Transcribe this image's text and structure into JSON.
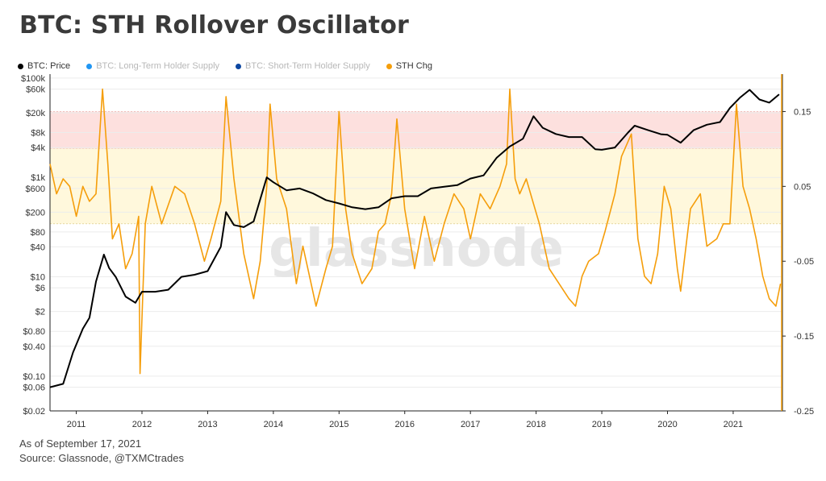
{
  "header": {
    "title": "BTC: STH Rollover Oscillator"
  },
  "legend": [
    {
      "label": "BTC: Price",
      "color": "#000000",
      "faded": false
    },
    {
      "label": "BTC: Long-Term Holder Supply",
      "color": "#2196f3",
      "faded": true
    },
    {
      "label": "BTC: Short-Term Holder Supply",
      "color": "#0d47a1",
      "faded": true
    },
    {
      "label": "STH Chg",
      "color": "#f59e0b",
      "faded": false
    }
  ],
  "footer": {
    "date_line": "As of September 17, 2021",
    "source_line": "Source: Glassnode, @TXMCtrades"
  },
  "watermark": "glassnode",
  "chart_data": {
    "type": "line",
    "x_axis": {
      "ticks": [
        "2011",
        "2012",
        "2013",
        "2014",
        "2015",
        "2016",
        "2017",
        "2018",
        "2019",
        "2020",
        "2021"
      ],
      "range": [
        2010.6,
        2021.75
      ]
    },
    "y_left": {
      "scale": "log",
      "range": [
        0.02,
        120000
      ],
      "ticks": [
        {
          "label": "$100k",
          "value": 100000
        },
        {
          "label": "$60k",
          "value": 60000
        },
        {
          "label": "$20k",
          "value": 20000
        },
        {
          "label": "$8k",
          "value": 8000
        },
        {
          "label": "$4k",
          "value": 4000
        },
        {
          "label": "$1k",
          "value": 1000
        },
        {
          "label": "$600",
          "value": 600
        },
        {
          "label": "$200",
          "value": 200
        },
        {
          "label": "$80",
          "value": 80
        },
        {
          "label": "$40",
          "value": 40
        },
        {
          "label": "$10",
          "value": 10
        },
        {
          "label": "$6",
          "value": 6
        },
        {
          "label": "$2",
          "value": 2
        },
        {
          "label": "$0.80",
          "value": 0.8
        },
        {
          "label": "$0.40",
          "value": 0.4
        },
        {
          "label": "$0.10",
          "value": 0.1
        },
        {
          "label": "$0.06",
          "value": 0.06
        },
        {
          "label": "$0.02",
          "value": 0.02
        }
      ]
    },
    "y_right": {
      "scale": "linear",
      "range": [
        -0.25,
        0.2
      ],
      "ticks": [
        {
          "label": "0.15",
          "value": 0.15
        },
        {
          "label": "0.05",
          "value": 0.05
        },
        {
          "label": "-0.05",
          "value": -0.05
        },
        {
          "label": "-0.15",
          "value": -0.15
        },
        {
          "label": "-0.25",
          "value": -0.25
        }
      ]
    },
    "bands": [
      {
        "from": 0.1,
        "to": 0.15,
        "color": "#fde0de"
      },
      {
        "from": 0.0,
        "to": 0.1,
        "color": "#fff8dc"
      }
    ],
    "series": [
      {
        "name": "BTC: Price",
        "axis": "left",
        "color": "#000000",
        "x": [
          2010.6,
          2010.8,
          2010.95,
          2011.1,
          2011.2,
          2011.3,
          2011.42,
          2011.5,
          2011.6,
          2011.75,
          2011.9,
          2012.0,
          2012.2,
          2012.4,
          2012.6,
          2012.8,
          2013.0,
          2013.2,
          2013.28,
          2013.4,
          2013.55,
          2013.7,
          2013.9,
          2014.0,
          2014.2,
          2014.4,
          2014.6,
          2014.8,
          2015.0,
          2015.2,
          2015.4,
          2015.6,
          2015.8,
          2016.0,
          2016.2,
          2016.4,
          2016.6,
          2016.8,
          2017.0,
          2017.2,
          2017.4,
          2017.6,
          2017.8,
          2017.96,
          2018.1,
          2018.3,
          2018.5,
          2018.7,
          2018.9,
          2019.0,
          2019.2,
          2019.4,
          2019.5,
          2019.7,
          2019.9,
          2020.0,
          2020.2,
          2020.4,
          2020.6,
          2020.8,
          2020.95,
          2021.1,
          2021.25,
          2021.4,
          2021.55,
          2021.7
        ],
        "y": [
          0.06,
          0.07,
          0.3,
          0.9,
          1.5,
          8,
          28,
          15,
          10,
          4,
          3,
          5,
          5,
          5.5,
          10,
          11,
          13,
          40,
          200,
          110,
          100,
          130,
          1000,
          800,
          550,
          600,
          480,
          350,
          300,
          250,
          230,
          250,
          380,
          420,
          420,
          600,
          650,
          700,
          950,
          1100,
          2500,
          4200,
          6000,
          17000,
          10000,
          7500,
          6500,
          6500,
          3700,
          3600,
          4000,
          8000,
          11000,
          9000,
          7400,
          7200,
          5000,
          9000,
          11500,
          13000,
          25000,
          40000,
          58000,
          37000,
          32000,
          47000
        ]
      },
      {
        "name": "STH Chg",
        "axis": "right",
        "color": "#f59e0b",
        "x": [
          2010.6,
          2010.7,
          2010.8,
          2010.9,
          2011.0,
          2011.1,
          2011.2,
          2011.3,
          2011.4,
          2011.48,
          2011.55,
          2011.65,
          2011.75,
          2011.85,
          2011.95,
          2011.97,
          2012.05,
          2012.15,
          2012.3,
          2012.5,
          2012.65,
          2012.8,
          2012.95,
          2013.05,
          2013.2,
          2013.28,
          2013.4,
          2013.55,
          2013.7,
          2013.8,
          2013.9,
          2013.95,
          2014.05,
          2014.2,
          2014.35,
          2014.45,
          2014.55,
          2014.65,
          2014.8,
          2014.9,
          2015.0,
          2015.1,
          2015.2,
          2015.35,
          2015.5,
          2015.6,
          2015.7,
          2015.8,
          2015.88,
          2016.0,
          2016.15,
          2016.3,
          2016.45,
          2016.6,
          2016.75,
          2016.9,
          2017.0,
          2017.15,
          2017.3,
          2017.45,
          2017.55,
          2017.6,
          2017.68,
          2017.75,
          2017.85,
          2017.95,
          2018.05,
          2018.2,
          2018.35,
          2018.5,
          2018.6,
          2018.7,
          2018.8,
          2018.95,
          2019.05,
          2019.2,
          2019.3,
          2019.45,
          2019.55,
          2019.65,
          2019.75,
          2019.85,
          2019.95,
          2020.05,
          2020.15,
          2020.2,
          2020.35,
          2020.5,
          2020.6,
          2020.75,
          2020.85,
          2020.95,
          2021.05,
          2021.15,
          2021.25,
          2021.35,
          2021.45,
          2021.55,
          2021.65,
          2021.72
        ],
        "y": [
          0.08,
          0.04,
          0.06,
          0.05,
          0.01,
          0.05,
          0.03,
          0.04,
          0.18,
          0.08,
          -0.02,
          0.0,
          -0.06,
          -0.04,
          0.01,
          -0.2,
          0.0,
          0.05,
          0.0,
          0.05,
          0.04,
          0.0,
          -0.05,
          -0.02,
          0.03,
          0.17,
          0.06,
          -0.04,
          -0.1,
          -0.05,
          0.05,
          0.16,
          0.06,
          0.02,
          -0.08,
          -0.03,
          -0.07,
          -0.11,
          -0.06,
          -0.03,
          0.15,
          0.02,
          -0.04,
          -0.08,
          -0.06,
          -0.01,
          0.0,
          0.04,
          0.14,
          0.02,
          -0.06,
          0.01,
          -0.05,
          0.0,
          0.04,
          0.02,
          -0.02,
          0.04,
          0.02,
          0.05,
          0.08,
          0.18,
          0.06,
          0.04,
          0.06,
          0.03,
          0.0,
          -0.06,
          -0.08,
          -0.1,
          -0.11,
          -0.07,
          -0.05,
          -0.04,
          -0.01,
          0.04,
          0.09,
          0.12,
          -0.02,
          -0.07,
          -0.08,
          -0.04,
          0.05,
          0.02,
          -0.06,
          -0.09,
          0.02,
          0.04,
          -0.03,
          -0.02,
          0.0,
          0.0,
          0.16,
          0.05,
          0.02,
          -0.02,
          -0.07,
          -0.1,
          -0.11,
          -0.08
        ]
      }
    ]
  }
}
